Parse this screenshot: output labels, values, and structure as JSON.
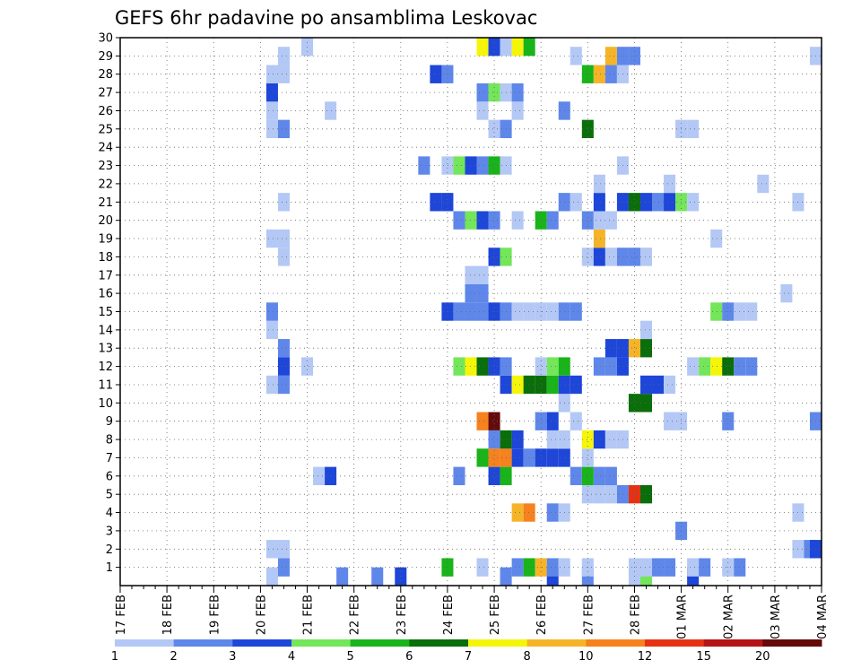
{
  "chart_data": {
    "type": "heatmap",
    "title": "GEFS 6hr padavine po ansamblima Leskovac",
    "x_ticks": [
      "17 FEB",
      "18 FEB",
      "19 FEB",
      "20 FEB",
      "21 FEB",
      "22 FEB",
      "23 FEB",
      "24 FEB",
      "25 FEB",
      "26 FEB",
      "27 FEB",
      "28 FEB",
      "01 MAR",
      "02 MAR",
      "03 MAR",
      "04 MAR"
    ],
    "y_ticks": [
      "1",
      "2",
      "3",
      "4",
      "5",
      "6",
      "7",
      "8",
      "9",
      "10",
      "11",
      "12",
      "13",
      "14",
      "15",
      "16",
      "17",
      "18",
      "19",
      "20",
      "21",
      "22",
      "23",
      "24",
      "25",
      "26",
      "27",
      "28",
      "29",
      "30"
    ],
    "xlim_days": [
      0,
      15
    ],
    "ylim": [
      0,
      30
    ],
    "grid": true,
    "colorbar": {
      "labels": [
        "1",
        "2",
        "3",
        "4",
        "5",
        "6",
        "7",
        "8",
        "10",
        "12",
        "15",
        "20"
      ],
      "colors": [
        "#b4c8f5",
        "#5f87ea",
        "#1e46d8",
        "#73e65a",
        "#19b419",
        "#0a6e0a",
        "#f5f50a",
        "#f5b428",
        "#f5821e",
        "#e63214",
        "#b41414",
        "#640a0a"
      ]
    },
    "cells": [
      [
        3.25,
        0,
        0
      ],
      [
        4.75,
        0,
        1
      ],
      [
        5.5,
        0,
        1
      ],
      [
        6.0,
        0,
        2
      ],
      [
        8.25,
        0,
        1
      ],
      [
        9.25,
        0,
        2
      ],
      [
        10.0,
        0,
        1
      ],
      [
        11.0,
        0,
        0
      ],
      [
        11.25,
        0,
        3
      ],
      [
        12.25,
        0,
        2
      ],
      [
        3.5,
        1,
        1
      ],
      [
        7.0,
        1,
        4
      ],
      [
        7.75,
        1,
        0
      ],
      [
        8.5,
        1,
        1
      ],
      [
        8.75,
        1,
        4
      ],
      [
        9.0,
        1,
        7
      ],
      [
        9.25,
        1,
        1
      ],
      [
        9.5,
        1,
        0
      ],
      [
        10.0,
        1,
        0
      ],
      [
        11.0,
        1,
        0
      ],
      [
        11.25,
        1,
        0
      ],
      [
        11.5,
        1,
        1
      ],
      [
        11.75,
        1,
        1
      ],
      [
        12.25,
        1,
        0
      ],
      [
        12.5,
        1,
        1
      ],
      [
        13.0,
        1,
        0
      ],
      [
        13.25,
        1,
        1
      ],
      [
        3.25,
        2,
        0
      ],
      [
        3.5,
        2,
        0
      ],
      [
        14.5,
        2,
        0
      ],
      [
        14.75,
        2,
        1
      ],
      [
        15.0,
        2,
        2
      ],
      [
        12.0,
        3,
        1
      ],
      [
        8.5,
        4,
        7
      ],
      [
        8.75,
        4,
        8
      ],
      [
        9.25,
        4,
        1
      ],
      [
        9.5,
        4,
        0
      ],
      [
        14.5,
        4,
        0
      ],
      [
        10.0,
        5,
        0
      ],
      [
        10.25,
        5,
        0
      ],
      [
        10.5,
        5,
        0
      ],
      [
        10.75,
        5,
        1
      ],
      [
        11.0,
        5,
        9
      ],
      [
        11.25,
        5,
        5
      ],
      [
        4.25,
        6,
        0
      ],
      [
        4.5,
        6,
        2
      ],
      [
        7.25,
        6,
        1
      ],
      [
        8.0,
        6,
        2
      ],
      [
        8.25,
        6,
        4
      ],
      [
        9.75,
        6,
        1
      ],
      [
        10.0,
        6,
        4
      ],
      [
        10.25,
        6,
        1
      ],
      [
        10.5,
        6,
        1
      ],
      [
        7.75,
        7,
        4
      ],
      [
        8.0,
        7,
        8
      ],
      [
        8.25,
        7,
        8
      ],
      [
        8.5,
        7,
        2
      ],
      [
        8.75,
        7,
        1
      ],
      [
        9.0,
        7,
        2
      ],
      [
        9.25,
        7,
        2
      ],
      [
        9.5,
        7,
        2
      ],
      [
        10.0,
        7,
        0
      ],
      [
        8.0,
        8,
        1
      ],
      [
        8.25,
        8,
        5
      ],
      [
        8.5,
        8,
        2
      ],
      [
        9.25,
        8,
        0
      ],
      [
        9.5,
        8,
        0
      ],
      [
        10.0,
        8,
        6
      ],
      [
        10.25,
        8,
        2
      ],
      [
        10.5,
        8,
        0
      ],
      [
        10.75,
        8,
        0
      ],
      [
        7.75,
        9,
        8
      ],
      [
        8.0,
        9,
        11
      ],
      [
        9.0,
        9,
        1
      ],
      [
        9.25,
        9,
        2
      ],
      [
        9.75,
        9,
        0
      ],
      [
        11.75,
        9,
        0
      ],
      [
        12.0,
        9,
        0
      ],
      [
        13.0,
        9,
        1
      ],
      [
        15.0,
        9,
        1
      ],
      [
        9.5,
        10,
        0
      ],
      [
        11.0,
        10,
        5
      ],
      [
        11.25,
        10,
        5
      ],
      [
        3.25,
        11,
        0
      ],
      [
        3.5,
        11,
        1
      ],
      [
        8.25,
        11,
        2
      ],
      [
        8.5,
        11,
        6
      ],
      [
        8.75,
        11,
        5
      ],
      [
        9.0,
        11,
        5
      ],
      [
        9.25,
        11,
        4
      ],
      [
        9.5,
        11,
        2
      ],
      [
        9.75,
        11,
        2
      ],
      [
        11.25,
        11,
        2
      ],
      [
        11.5,
        11,
        2
      ],
      [
        11.75,
        11,
        0
      ],
      [
        3.5,
        12,
        2
      ],
      [
        4.0,
        12,
        0
      ],
      [
        7.25,
        12,
        3
      ],
      [
        7.5,
        12,
        6
      ],
      [
        7.75,
        12,
        5
      ],
      [
        8.0,
        12,
        2
      ],
      [
        8.25,
        12,
        1
      ],
      [
        9.0,
        12,
        0
      ],
      [
        9.25,
        12,
        3
      ],
      [
        9.5,
        12,
        4
      ],
      [
        10.25,
        12,
        1
      ],
      [
        10.5,
        12,
        1
      ],
      [
        10.75,
        12,
        2
      ],
      [
        12.25,
        12,
        0
      ],
      [
        12.5,
        12,
        3
      ],
      [
        12.75,
        12,
        6
      ],
      [
        13.0,
        12,
        5
      ],
      [
        13.25,
        12,
        1
      ],
      [
        13.5,
        12,
        1
      ],
      [
        3.5,
        13,
        1
      ],
      [
        10.5,
        13,
        2
      ],
      [
        10.75,
        13,
        2
      ],
      [
        11.0,
        13,
        7
      ],
      [
        11.25,
        13,
        5
      ],
      [
        3.25,
        14,
        0
      ],
      [
        11.25,
        14,
        0
      ],
      [
        3.25,
        15,
        1
      ],
      [
        7.0,
        15,
        2
      ],
      [
        7.25,
        15,
        1
      ],
      [
        7.5,
        15,
        1
      ],
      [
        7.75,
        15,
        1
      ],
      [
        8.0,
        15,
        2
      ],
      [
        8.25,
        15,
        1
      ],
      [
        8.5,
        15,
        0
      ],
      [
        8.75,
        15,
        0
      ],
      [
        9.0,
        15,
        0
      ],
      [
        9.25,
        15,
        0
      ],
      [
        9.5,
        15,
        1
      ],
      [
        9.75,
        15,
        1
      ],
      [
        12.75,
        15,
        3
      ],
      [
        13.0,
        15,
        1
      ],
      [
        13.25,
        15,
        0
      ],
      [
        13.5,
        15,
        0
      ],
      [
        7.5,
        16,
        1
      ],
      [
        7.75,
        16,
        1
      ],
      [
        14.25,
        16,
        0
      ],
      [
        7.5,
        17,
        0
      ],
      [
        7.75,
        17,
        0
      ],
      [
        3.5,
        18,
        0
      ],
      [
        8.0,
        18,
        2
      ],
      [
        8.25,
        18,
        3
      ],
      [
        10.0,
        18,
        0
      ],
      [
        10.25,
        18,
        2
      ],
      [
        10.5,
        18,
        0
      ],
      [
        10.75,
        18,
        1
      ],
      [
        11.0,
        18,
        1
      ],
      [
        11.25,
        18,
        0
      ],
      [
        3.25,
        19,
        0
      ],
      [
        3.5,
        19,
        0
      ],
      [
        10.25,
        19,
        7
      ],
      [
        12.75,
        19,
        0
      ],
      [
        7.25,
        20,
        1
      ],
      [
        7.5,
        20,
        3
      ],
      [
        7.75,
        20,
        2
      ],
      [
        8.0,
        20,
        1
      ],
      [
        8.5,
        20,
        0
      ],
      [
        9.0,
        20,
        4
      ],
      [
        9.25,
        20,
        1
      ],
      [
        10.0,
        20,
        1
      ],
      [
        10.25,
        20,
        0
      ],
      [
        10.5,
        20,
        0
      ],
      [
        3.5,
        21,
        0
      ],
      [
        6.75,
        21,
        2
      ],
      [
        7.0,
        21,
        2
      ],
      [
        9.5,
        21,
        1
      ],
      [
        9.75,
        21,
        0
      ],
      [
        10.25,
        21,
        2
      ],
      [
        10.75,
        21,
        2
      ],
      [
        11.0,
        21,
        5
      ],
      [
        11.25,
        21,
        2
      ],
      [
        11.5,
        21,
        1
      ],
      [
        11.75,
        21,
        2
      ],
      [
        12.0,
        21,
        3
      ],
      [
        12.25,
        21,
        0
      ],
      [
        14.5,
        21,
        0
      ],
      [
        10.25,
        22,
        0
      ],
      [
        11.75,
        22,
        0
      ],
      [
        13.75,
        22,
        0
      ],
      [
        6.5,
        23,
        1
      ],
      [
        7.0,
        23,
        0
      ],
      [
        7.25,
        23,
        3
      ],
      [
        7.5,
        23,
        2
      ],
      [
        7.75,
        23,
        1
      ],
      [
        8.0,
        23,
        4
      ],
      [
        8.25,
        23,
        0
      ],
      [
        10.75,
        23,
        0
      ],
      [
        10.0,
        25,
        5
      ],
      [
        3.25,
        25,
        0
      ],
      [
        3.5,
        25,
        1
      ],
      [
        8.0,
        25,
        0
      ],
      [
        8.25,
        25,
        1
      ],
      [
        12.0,
        25,
        0
      ],
      [
        12.25,
        25,
        0
      ],
      [
        3.25,
        26,
        0
      ],
      [
        4.5,
        26,
        0
      ],
      [
        7.75,
        26,
        0
      ],
      [
        8.5,
        26,
        0
      ],
      [
        9.5,
        26,
        1
      ],
      [
        3.25,
        27,
        2
      ],
      [
        7.75,
        27,
        1
      ],
      [
        8.0,
        27,
        3
      ],
      [
        8.25,
        27,
        0
      ],
      [
        8.5,
        27,
        1
      ],
      [
        3.25,
        28,
        0
      ],
      [
        3.5,
        28,
        0
      ],
      [
        6.75,
        28,
        2
      ],
      [
        7.0,
        28,
        1
      ],
      [
        10.0,
        28,
        4
      ],
      [
        10.25,
        28,
        7
      ],
      [
        10.5,
        28,
        1
      ],
      [
        10.75,
        28,
        0
      ],
      [
        3.5,
        29,
        0
      ],
      [
        9.75,
        29,
        0
      ],
      [
        10.5,
        29,
        7
      ],
      [
        10.75,
        29,
        1
      ],
      [
        11.0,
        29,
        1
      ],
      [
        15.0,
        29,
        0
      ],
      [
        4.0,
        30,
        0
      ],
      [
        7.75,
        30,
        6
      ],
      [
        8.0,
        30,
        2
      ],
      [
        8.25,
        30,
        0
      ],
      [
        8.5,
        30,
        6
      ],
      [
        8.75,
        30,
        4
      ]
    ]
  }
}
